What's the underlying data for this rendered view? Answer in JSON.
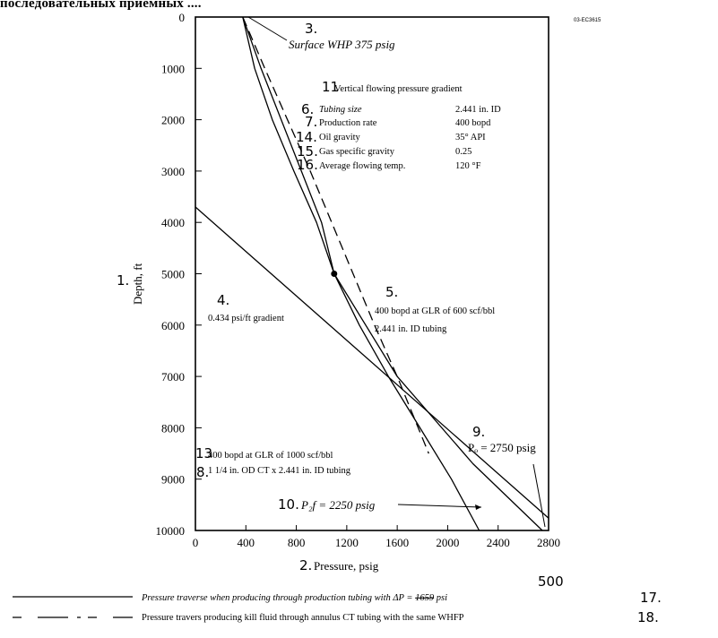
{
  "header_cut": "последовательных приемных ....",
  "doc_code": "03-ЕС3615",
  "handwritten": {
    "n1": "1.",
    "n2": "2.",
    "n3": "3.",
    "n4": "4.",
    "n5": "5.",
    "n6": "6.",
    "n7": "7.",
    "n8": "8.",
    "n9": "9.",
    "n10": "10.",
    "n11": "11",
    "n13": "13",
    "n14": "14.",
    "n15": "15.",
    "n16": "16.",
    "n17": "17.",
    "n18": "18.",
    "n500": "500"
  },
  "annotations": {
    "surface_whp": "Surface WHP 375 psig",
    "gradient_title": "Vertical flowing pressure gradient",
    "gradient_label": "0.434 psi/ft gradient",
    "glr600_line1": "400 bopd at GLR of 600 scf/bbl",
    "glr600_line2": "2.441 in. ID tubing",
    "glr1000_line1": "400 bopd at GLR of 1000 scf/bbl",
    "glr1000_line2": "1 1/4 in. OD CT x 2.441 in. ID tubing",
    "pwf": "P₂f = 2250 psig",
    "po": "Pₒ = 2750 psig"
  },
  "specs": [
    {
      "label": "Tubing size",
      "value": "2.441 in. ID"
    },
    {
      "label": "Production rate",
      "value": "400 bopd"
    },
    {
      "label": "Oil gravity",
      "value": "35° API"
    },
    {
      "label": "Gas specific gravity",
      "value": "0.25"
    },
    {
      "label": "Average flowing temp.",
      "value": "120 °F"
    }
  ],
  "legend": {
    "solid_prefix": "Pressure traverse when producing through production tubing with ΔP = ",
    "solid_struck": "1659",
    "solid_suffix": " psi",
    "dashed": "Pressure travers producing kill fluid through annulus CT tubing with the same WHFP"
  },
  "chart_data": {
    "type": "line",
    "xlabel": "Pressure, psig",
    "ylabel": "Depth, ft",
    "xlim": [
      0,
      2800
    ],
    "ylim": [
      0,
      10000
    ],
    "y_inverted": true,
    "xticks": [
      "0",
      "400",
      "800",
      "1200",
      "1600",
      "2000",
      "2400",
      "2800"
    ],
    "yticks": [
      "0",
      "1000",
      "2000",
      "3000",
      "4000",
      "5000",
      "6000",
      "7000",
      "8000",
      "9000",
      "10000"
    ],
    "grid": false,
    "series": [
      {
        "style": "solid",
        "x": [
          375,
          470,
          610,
          780,
          960,
          1100,
          1300,
          1530,
          1780,
          2030,
          2250
        ],
        "y": [
          0,
          1000,
          2000,
          3000,
          4000,
          5000,
          6000,
          7000,
          8000,
          9000,
          10000
        ]
      },
      {
        "style": "solid",
        "x": [
          375,
          520,
          680,
          840,
          1000,
          1100,
          1600,
          2200,
          2750
        ],
        "y": [
          0,
          1000,
          2000,
          3000,
          4000,
          5000,
          7000,
          8700,
          10000
        ]
      },
      {
        "style": "dashed",
        "x": [
          375,
          550,
          730,
          910,
          1080,
          1250,
          1420,
          1600,
          1850
        ],
        "y": [
          0,
          1000,
          2000,
          3000,
          4000,
          5000,
          6000,
          7000,
          8500
        ]
      },
      {
        "style": "solid",
        "x": [
          0,
          2800
        ],
        "y": [
          3700,
          9760
        ]
      }
    ],
    "markers": [
      {
        "x": 1100,
        "y": 5000
      }
    ]
  }
}
